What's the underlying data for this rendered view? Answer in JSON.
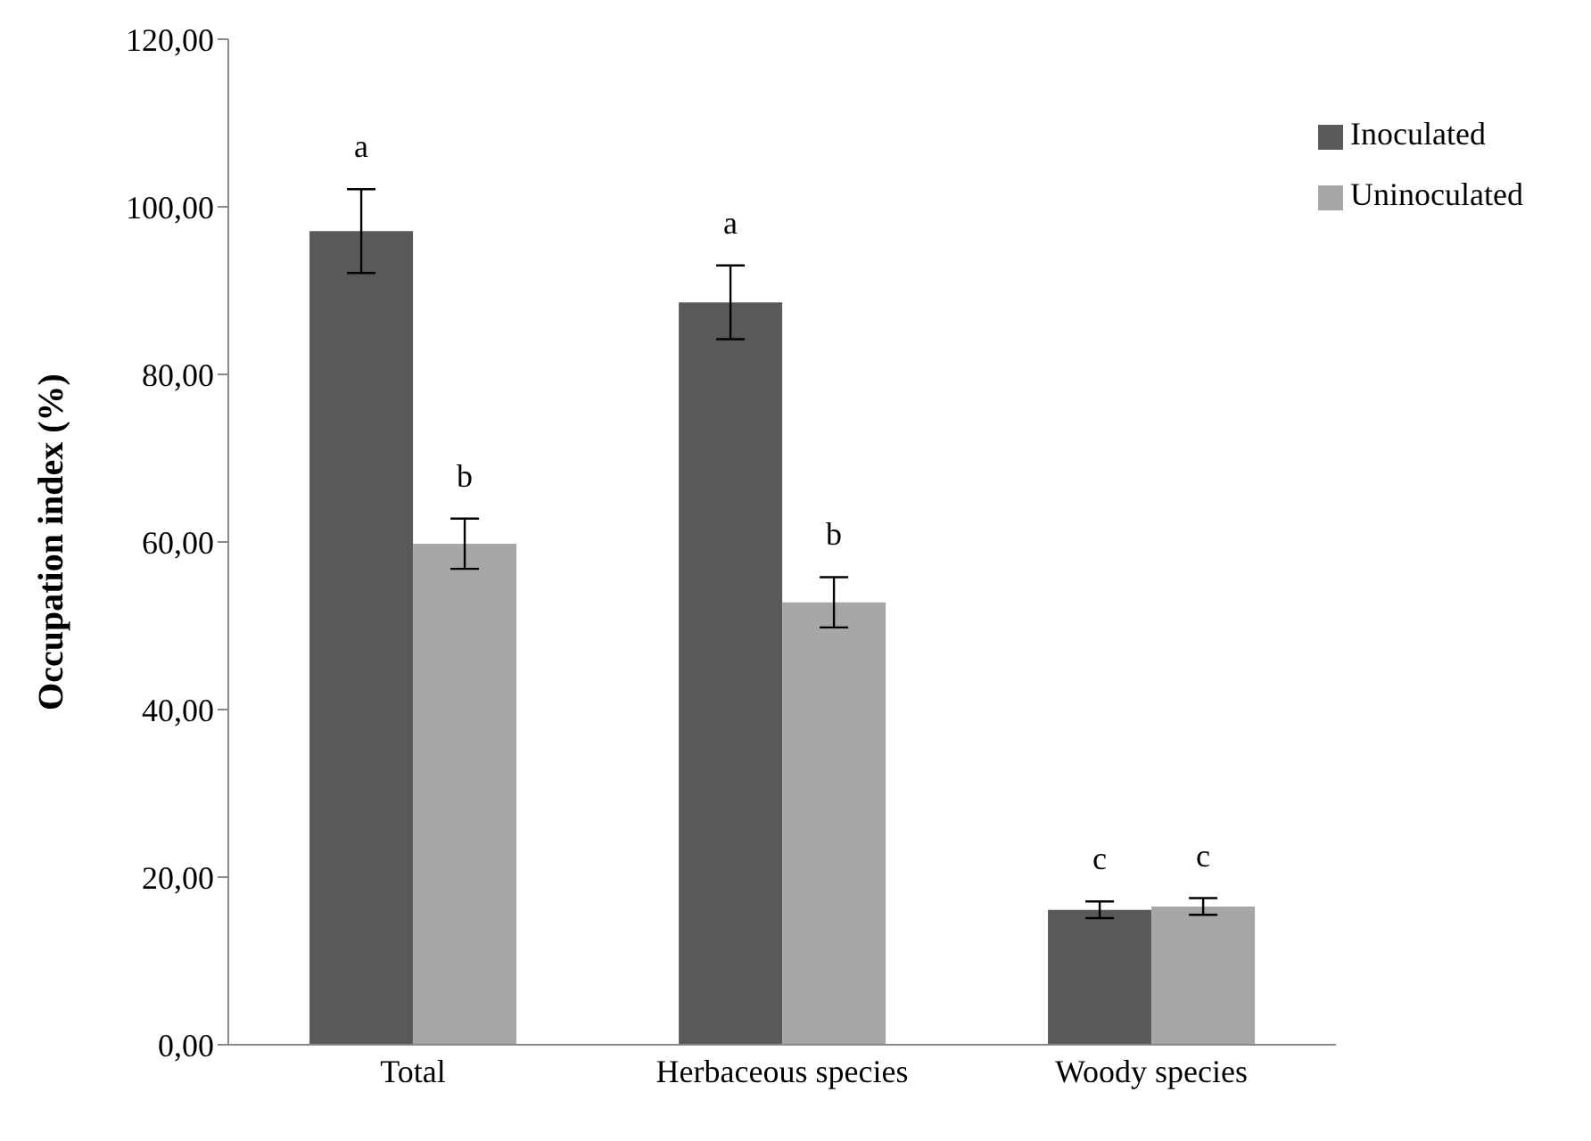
{
  "chart_data": {
    "type": "bar",
    "ylabel": "Occupation index (%)",
    "categories": [
      "Total",
      "Herbaceous species",
      "Woody species"
    ],
    "series": [
      {
        "name": "Inoculated",
        "color": "#595959",
        "values": [
          97.1,
          88.6,
          16.1
        ],
        "errors": [
          5,
          4.4,
          1
        ],
        "value_labels": [
          "a",
          "a",
          "c"
        ]
      },
      {
        "name": "Uninoculated",
        "color": "#a6a6a6",
        "values": [
          59.8,
          52.8,
          16.5
        ],
        "errors": [
          3,
          3,
          1
        ],
        "value_labels": [
          "b",
          "b",
          "c"
        ]
      }
    ],
    "ylim": [
      0,
      120
    ],
    "yticks": [
      {
        "value": 0,
        "label": "0,00"
      },
      {
        "value": 20,
        "label": "20,00"
      },
      {
        "value": 40,
        "label": "40,00"
      },
      {
        "value": 60,
        "label": "60,00"
      },
      {
        "value": 80,
        "label": "80,00"
      },
      {
        "value": 100,
        "label": "100,00"
      },
      {
        "value": 120,
        "label": "120,00"
      }
    ],
    "grid": false,
    "legend": "top right"
  }
}
